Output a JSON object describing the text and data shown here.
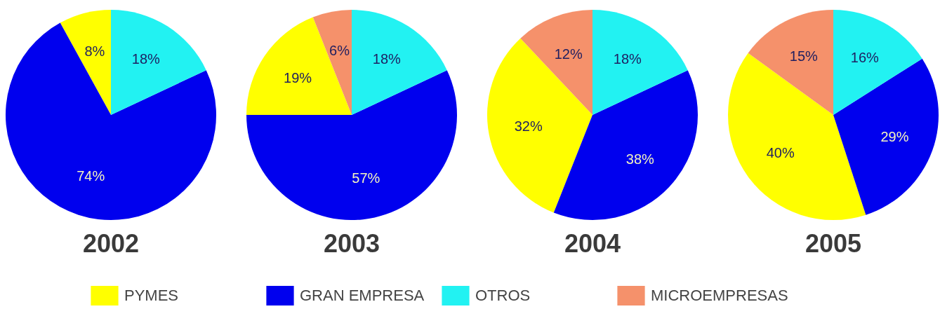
{
  "chart_data": {
    "type": "pie",
    "categories": [
      "PYMES",
      "GRAN EMPRESA",
      "OTROS",
      "MICROEMPRESAS"
    ],
    "colors": [
      "#ffff00",
      "#0000ee",
      "#22f2f2",
      "#f5916b"
    ],
    "series": [
      {
        "name": "2002",
        "values": [
          8,
          74,
          18,
          null
        ],
        "value_labels": [
          "8%",
          "74%",
          "18%",
          null
        ]
      },
      {
        "name": "2003",
        "values": [
          19,
          57,
          18,
          6
        ],
        "value_labels": [
          "19%",
          "57%",
          "18%",
          "6%"
        ]
      },
      {
        "name": "2004",
        "values": [
          32,
          38,
          18,
          12
        ],
        "value_labels": [
          "32%",
          "38%",
          "18%",
          "12%"
        ]
      },
      {
        "name": "2005",
        "values": [
          40,
          29,
          16,
          15
        ],
        "value_labels": [
          "40%",
          "29%",
          "16%",
          "15%"
        ]
      }
    ],
    "legend": "bottom"
  }
}
